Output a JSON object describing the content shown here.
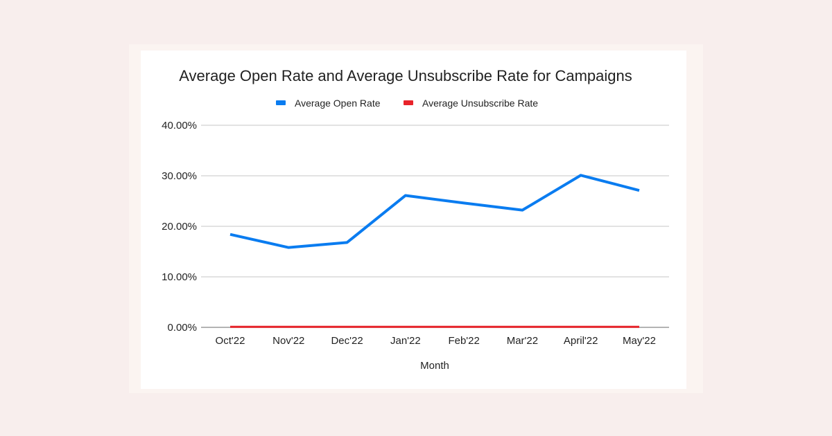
{
  "chart_data": {
    "type": "line",
    "title": "Average Open Rate and Average Unsubscribe Rate for Campaigns",
    "xlabel": "Month",
    "ylabel": "",
    "categories": [
      "Oct'22",
      "Nov'22",
      "Dec'22",
      "Jan'22",
      "Feb'22",
      "Mar'22",
      "April'22",
      "May'22"
    ],
    "ylim": [
      0,
      40
    ],
    "yticks": [
      "0.00%",
      "10.00%",
      "20.00%",
      "30.00%",
      "40.00%"
    ],
    "grid": true,
    "legend_position": "top",
    "series": [
      {
        "name": "Average Open Rate",
        "color": "#0a7cf0",
        "values": [
          18.4,
          15.8,
          16.8,
          26.1,
          24.6,
          23.2,
          30.1,
          27.1
        ]
      },
      {
        "name": "Average Unsubscribe Rate",
        "color": "#e8232a",
        "values": [
          0.1,
          0.1,
          0.1,
          0.1,
          0.1,
          0.1,
          0.1,
          0.1
        ]
      }
    ]
  }
}
